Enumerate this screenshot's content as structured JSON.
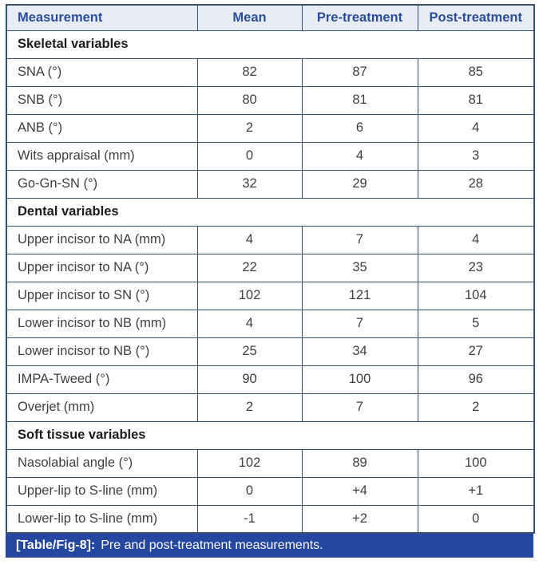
{
  "colors": {
    "header_text": "#2b4d9b",
    "header_bg": "#e8ecf5",
    "border": "#35536e",
    "body_text": "#3f3f3f",
    "section_text": "#1c1c1c",
    "caption_bg": "#2547a0",
    "caption_text": "#ffffff"
  },
  "caption": {
    "tag": "[Table/Fig-8]:",
    "text": "Pre and post-treatment measurements."
  },
  "chart_data": {
    "type": "table",
    "title": "[Table/Fig-8]: Pre and post-treatment measurements.",
    "columns": [
      "Measurement",
      "Mean",
      "Pre-treatment",
      "Post-treatment"
    ],
    "sections": [
      {
        "header": "Skeletal variables",
        "rows": [
          [
            "SNA (°)",
            "82",
            "87",
            "85"
          ],
          [
            "SNB (°)",
            "80",
            "81",
            "81"
          ],
          [
            "ANB (°)",
            "2",
            "6",
            "4"
          ],
          [
            "Wits appraisal (mm)",
            "0",
            "4",
            "3"
          ],
          [
            "Go-Gn-SN (°)",
            "32",
            "29",
            "28"
          ]
        ]
      },
      {
        "header": "Dental variables",
        "rows": [
          [
            "Upper incisor to NA (mm)",
            "4",
            "7",
            "4"
          ],
          [
            "Upper incisor to NA (°)",
            "22",
            "35",
            "23"
          ],
          [
            "Upper incisor to SN (°)",
            "102",
            "121",
            "104"
          ],
          [
            "Lower incisor to NB (mm)",
            "4",
            "7",
            "5"
          ],
          [
            "Lower incisor to NB (°)",
            "25",
            "34",
            "27"
          ],
          [
            "IMPA-Tweed (°)",
            "90",
            "100",
            "96"
          ],
          [
            "Overjet (mm)",
            "2",
            "7",
            "2"
          ]
        ]
      },
      {
        "header": "Soft tissue variables",
        "rows": [
          [
            "Nasolabial angle (°)",
            "102",
            "89",
            "100"
          ],
          [
            "Upper-lip to S-line (mm)",
            "0",
            "+4",
            "+1"
          ],
          [
            "Lower-lip to S-line (mm)",
            "-1",
            "+2",
            "0"
          ]
        ]
      }
    ]
  }
}
